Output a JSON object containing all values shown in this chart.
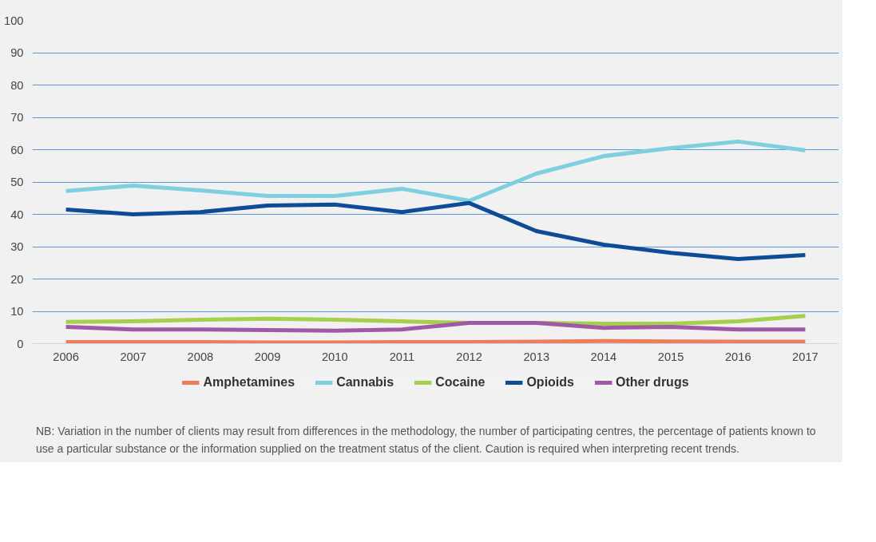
{
  "chart_data": {
    "type": "line",
    "categories": [
      "2006",
      "2007",
      "2008",
      "2009",
      "2010",
      "2011",
      "2012",
      "2013",
      "2014",
      "2015",
      "2016",
      "2017"
    ],
    "series": [
      {
        "name": "Amphetamines",
        "color": "#f07c5c",
        "values": [
          0.5,
          0.5,
          0.5,
          0.4,
          0.4,
          0.5,
          0.5,
          0.6,
          0.8,
          0.7,
          0.6,
          0.6
        ]
      },
      {
        "name": "Cannabis",
        "color": "#7fcfe0",
        "values": [
          47.2,
          48.9,
          47.4,
          45.7,
          45.7,
          47.9,
          44.2,
          52.6,
          58.0,
          60.5,
          62.5,
          59.8
        ]
      },
      {
        "name": "Cocaine",
        "color": "#a5cf4c",
        "values": [
          6.7,
          6.9,
          7.4,
          7.7,
          7.4,
          6.9,
          6.4,
          6.4,
          6.2,
          6.2,
          6.9,
          8.6
        ]
      },
      {
        "name": "Opioids",
        "color": "#0f4c96",
        "values": [
          41.5,
          40.0,
          40.7,
          42.7,
          43.0,
          40.7,
          43.5,
          34.8,
          30.6,
          28.1,
          26.2,
          27.4
        ]
      },
      {
        "name": "Other drugs",
        "color": "#a05aa5",
        "values": [
          5.2,
          4.4,
          4.4,
          4.2,
          4.0,
          4.4,
          6.4,
          6.4,
          4.9,
          5.2,
          4.4,
          4.4
        ]
      }
    ],
    "ylim": [
      0,
      100
    ],
    "yticks": [
      0,
      10,
      20,
      30,
      40,
      50,
      60,
      70,
      80,
      90,
      100
    ],
    "grid": "y",
    "legend": "bottom",
    "marker": "none",
    "line_style": "solid",
    "annotations": [
      "NB: Variation in the number of clients may result from differences in the methodology, the number of participating centres, the percentage of patients known to use a particular substance or the information supplied on the treatment status of the client.  Caution is required when interpreting recent trends."
    ]
  }
}
